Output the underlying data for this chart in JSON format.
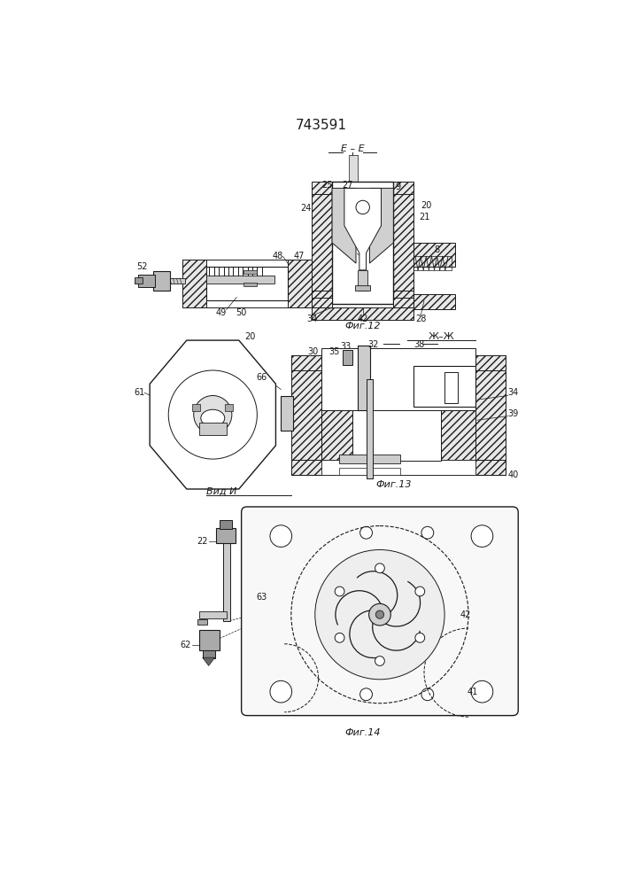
{
  "title": "743591",
  "bg_color": "#ffffff",
  "line_color": "#1a1a1a",
  "fig12_label": "Фиг.12",
  "fig13_label": "Фиг.13",
  "fig14_label": "Фиг.14",
  "section_ee": "E – E",
  "section_jj": "Ж–Ж",
  "view_n": "Вид И"
}
